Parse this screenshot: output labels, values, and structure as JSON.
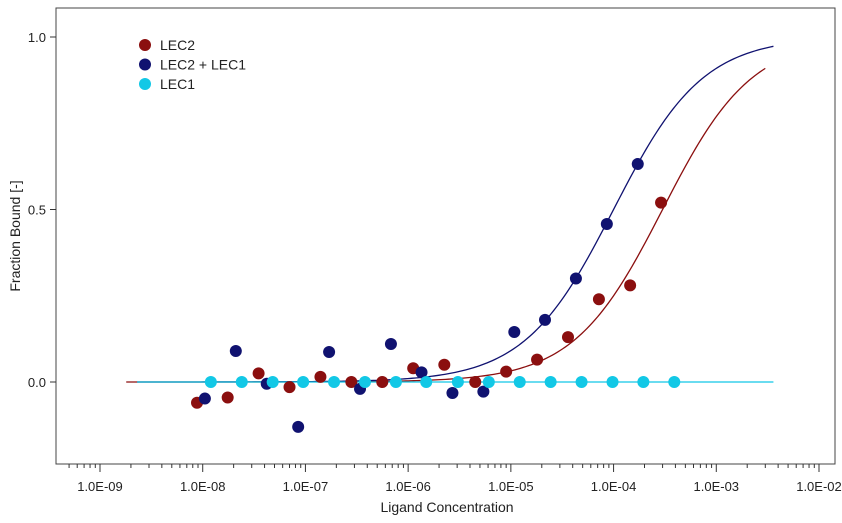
{
  "chart_data": {
    "type": "scatter",
    "title": "",
    "xlabel": "Ligand Concentration",
    "ylabel": "Fraction Bound [-]",
    "x_scale": "log",
    "xlim": [
      1e-09,
      0.01
    ],
    "ylim": [
      -0.24,
      1.06
    ],
    "x_tick_values": [
      1e-09,
      1e-08,
      1e-07,
      1e-06,
      1e-05,
      0.0001,
      0.001,
      0.01
    ],
    "x_tick_labels": [
      "1.0E-09",
      "1.0E-08",
      "1.0E-07",
      "1.0E-06",
      "1.0E-05",
      "1.0E-04",
      "1.0E-03",
      "1.0E-02"
    ],
    "y_tick_values": [
      0.0,
      0.5,
      1.0
    ],
    "y_tick_labels": [
      "0.0",
      "0.5",
      "1.0"
    ],
    "grid": false,
    "legend_position": "top-left",
    "series": [
      {
        "name": "LEC2",
        "color": "#8b0f0f",
        "points": [
          {
            "x": 8.8e-09,
            "y": -0.06
          },
          {
            "x": 1.75e-08,
            "y": -0.045
          },
          {
            "x": 3.5e-08,
            "y": 0.025
          },
          {
            "x": 7e-08,
            "y": -0.015
          },
          {
            "x": 1.4e-07,
            "y": 0.015
          },
          {
            "x": 2.8e-07,
            "y": 0.0
          },
          {
            "x": 5.6e-07,
            "y": 0.0
          },
          {
            "x": 1.12e-06,
            "y": 0.04
          },
          {
            "x": 2.25e-06,
            "y": 0.05
          },
          {
            "x": 4.5e-06,
            "y": 0.0
          },
          {
            "x": 9e-06,
            "y": 0.03
          },
          {
            "x": 1.8e-05,
            "y": 0.065
          },
          {
            "x": 3.6e-05,
            "y": 0.13
          },
          {
            "x": 7.2e-05,
            "y": 0.24
          },
          {
            "x": 0.000145,
            "y": 0.28
          },
          {
            "x": 0.00029,
            "y": 0.52
          }
        ],
        "fit": {
          "x_start": 1.8e-09,
          "x_end": 0.003,
          "kd": 0.0003
        }
      },
      {
        "name": "LEC2 + LEC1",
        "color": "#101270",
        "points": [
          {
            "x": 1.05e-08,
            "y": -0.048
          },
          {
            "x": 2.1e-08,
            "y": 0.09
          },
          {
            "x": 4.2e-08,
            "y": -0.005
          },
          {
            "x": 8.5e-08,
            "y": -0.13
          },
          {
            "x": 1.7e-07,
            "y": 0.087
          },
          {
            "x": 3.4e-07,
            "y": -0.02
          },
          {
            "x": 6.8e-07,
            "y": 0.11
          },
          {
            "x": 1.35e-06,
            "y": 0.028
          },
          {
            "x": 2.7e-06,
            "y": -0.032
          },
          {
            "x": 5.4e-06,
            "y": -0.028
          },
          {
            "x": 1.08e-05,
            "y": 0.145
          },
          {
            "x": 2.15e-05,
            "y": 0.18
          },
          {
            "x": 4.3e-05,
            "y": 0.3
          },
          {
            "x": 8.6e-05,
            "y": 0.458
          },
          {
            "x": 0.000172,
            "y": 0.632
          }
        ],
        "fit": {
          "x_start": 2.3e-09,
          "x_end": 0.0036,
          "kd": 0.0001
        }
      },
      {
        "name": "LEC1",
        "color": "#12c8e6",
        "points": [
          {
            "x": 1.2e-08,
            "y": 0.0
          },
          {
            "x": 2.4e-08,
            "y": 0.0
          },
          {
            "x": 4.8e-08,
            "y": 0.0
          },
          {
            "x": 9.5e-08,
            "y": 0.0
          },
          {
            "x": 1.9e-07,
            "y": 0.0
          },
          {
            "x": 3.8e-07,
            "y": 0.0
          },
          {
            "x": 7.6e-07,
            "y": 0.0
          },
          {
            "x": 1.5e-06,
            "y": 0.0
          },
          {
            "x": 3.05e-06,
            "y": 0.0
          },
          {
            "x": 6.1e-06,
            "y": 0.0
          },
          {
            "x": 1.22e-05,
            "y": 0.0
          },
          {
            "x": 2.44e-05,
            "y": 0.0
          },
          {
            "x": 4.88e-05,
            "y": 0.0
          },
          {
            "x": 9.77e-05,
            "y": 0.0
          },
          {
            "x": 0.000195,
            "y": 0.0
          },
          {
            "x": 0.00039,
            "y": 0.0
          }
        ],
        "fit": {
          "x_start": 2.3e-09,
          "x_end": 0.0036,
          "kd": null
        }
      }
    ]
  }
}
